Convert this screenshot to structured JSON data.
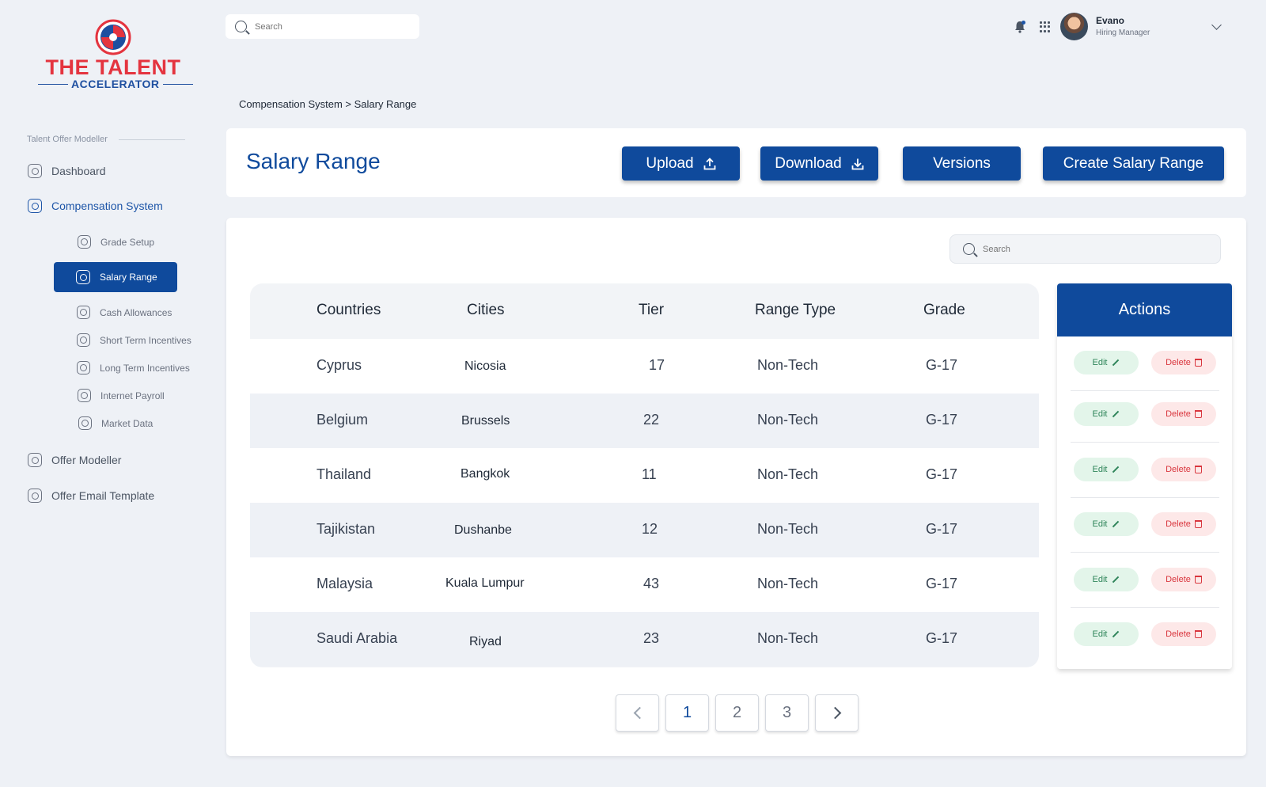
{
  "brand": {
    "title": "THE TALENT",
    "subtitle": "ACCELERATOR"
  },
  "sidebar": {
    "section_label": "Talent Offer Modeller",
    "items": [
      {
        "label": "Dashboard"
      },
      {
        "label": "Compensation System"
      },
      {
        "label": "Grade Setup"
      },
      {
        "label": "Salary Range"
      },
      {
        "label": "Cash Allowances"
      },
      {
        "label": "Short Term Incentives"
      },
      {
        "label": "Long Term Incentives"
      },
      {
        "label": "Internet Payroll"
      },
      {
        "label": "Market Data"
      },
      {
        "label": "Offer Modeller"
      },
      {
        "label": "Offer Email Template"
      }
    ]
  },
  "topbar": {
    "search_placeholder": "Search"
  },
  "user": {
    "name": "Evano",
    "role": "Hiring Manager"
  },
  "breadcrumb": "Compensation System > Salary Range",
  "header": {
    "title": "Salary Range",
    "buttons": {
      "upload": "Upload",
      "download": "Download",
      "versions": "Versions",
      "create": "Create Salary Range"
    }
  },
  "table": {
    "search_placeholder": "Search",
    "columns": [
      "Countries",
      "Cities",
      "Tier",
      "Range Type",
      "Grade"
    ],
    "rows": [
      {
        "country": "Cyprus",
        "city": "Nicosia",
        "tier": "17",
        "range_type": "Non-Tech",
        "grade": "G-17"
      },
      {
        "country": "Belgium",
        "city": "Brussels",
        "tier": "22",
        "range_type": "Non-Tech",
        "grade": "G-17"
      },
      {
        "country": "Thailand",
        "city": "Bangkok",
        "tier": "11",
        "range_type": "Non-Tech",
        "grade": "G-17"
      },
      {
        "country": "Tajikistan",
        "city": "Dushanbe",
        "tier": "12",
        "range_type": "Non-Tech",
        "grade": "G-17"
      },
      {
        "country": "Malaysia",
        "city": "Kuala Lumpur",
        "tier": "43",
        "range_type": "Non-Tech",
        "grade": "G-17"
      },
      {
        "country": "Saudi Arabia",
        "city": "Riyad",
        "tier": "23",
        "range_type": "Non-Tech",
        "grade": "G-17"
      }
    ],
    "actions_header": "Actions",
    "edit_label": "Edit",
    "delete_label": "Delete"
  },
  "pagination": {
    "pages": [
      "1",
      "2",
      "3"
    ],
    "current": "1"
  },
  "colors": {
    "primary": "#0f4a9c",
    "edit_bg": "#e3f5ea",
    "delete_bg": "#fde8e8",
    "brand_red": "#e4343f"
  }
}
